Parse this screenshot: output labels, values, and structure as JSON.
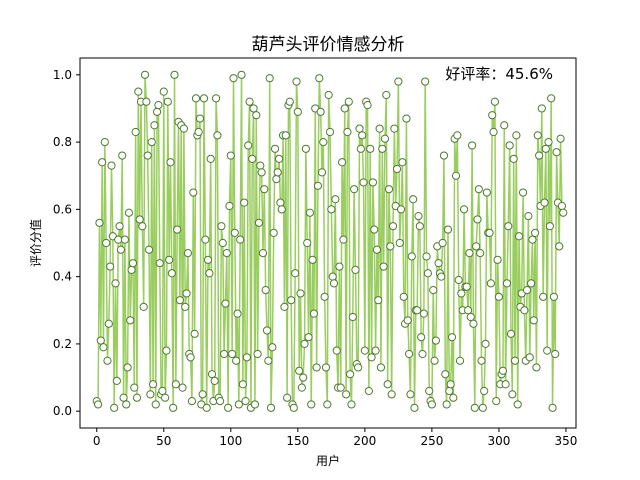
{
  "chart_data": {
    "type": "line",
    "title": "葫芦头评价情感分析",
    "xlabel": "用户",
    "ylabel": "评价分值",
    "annotation": "好评率：45.6%",
    "xlim": [
      -12.5,
      357.5
    ],
    "ylim": [
      -0.05,
      1.05
    ],
    "x_ticks": [
      0,
      50,
      100,
      150,
      200,
      250,
      300,
      350
    ],
    "y_ticks": [
      0.0,
      0.2,
      0.4,
      0.6,
      0.8,
      1.0
    ],
    "grid": false,
    "legend": "none",
    "series": [
      {
        "color": "#9ACD5F",
        "marker_face": "#ffffff",
        "marker_edge": "#4E7A2D",
        "x_start": 0,
        "values": [
          0.03,
          0.02,
          0.56,
          0.21,
          0.74,
          0.19,
          0.8,
          0.5,
          0.15,
          0.26,
          0.43,
          0.73,
          0.52,
          0.01,
          0.38,
          0.09,
          0.51,
          0.55,
          0.48,
          0.76,
          0.04,
          0.51,
          0.02,
          0.13,
          0.59,
          0.27,
          0.42,
          0.44,
          0.07,
          0.83,
          0.04,
          0.95,
          0.57,
          0.92,
          0.55,
          0.31,
          1.0,
          0.92,
          0.76,
          0.48,
          0.05,
          0.8,
          0.08,
          0.85,
          0.02,
          0.89,
          0.91,
          0.44,
          0.05,
          0.06,
          0.95,
          0.04,
          0.18,
          0.92,
          0.45,
          0.74,
          0.41,
          0.01,
          1.0,
          0.08,
          0.54,
          0.86,
          0.33,
          0.85,
          0.07,
          0.84,
          0.31,
          0.35,
          0.47,
          0.17,
          0.16,
          0.03,
          0.65,
          0.23,
          0.93,
          0.82,
          0.83,
          0.87,
          0.02,
          0.05,
          0.93,
          0.51,
          0.01,
          0.45,
          0.41,
          0.75,
          0.11,
          0.03,
          0.09,
          0.93,
          0.82,
          0.04,
          0.03,
          0.55,
          0.5,
          0.17,
          0.32,
          0.47,
          0.01,
          0.61,
          0.76,
          0.17,
          0.99,
          0.53,
          0.15,
          0.29,
          0.02,
          0.51,
          1.0,
          0.08,
          0.62,
          0.03,
          0.16,
          0.79,
          0.92,
          0.01,
          0.75,
          0.9,
          0.02,
          0.88,
          0.17,
          0.56,
          0.73,
          0.71,
          0.47,
          0.66,
          0.36,
          0.24,
          0.15,
          0.99,
          0.01,
          0.19,
          0.53,
          0.78,
          0.69,
          0.71,
          0.75,
          0.62,
          0.6,
          0.82,
          0.31,
          0.82,
          0.04,
          0.91,
          0.92,
          0.33,
          0.02,
          0.01,
          0.41,
          0.98,
          0.89,
          0.12,
          0.35,
          0.07,
          0.1,
          0.2,
          0.78,
          0.5,
          0.22,
          0.59,
          0.02,
          0.45,
          0.29,
          0.9,
          0.13,
          0.67,
          0.99,
          0.89,
          0.71,
          0.8,
          0.34,
          0.13,
          0.02,
          0.94,
          0.83,
          0.6,
          0.4,
          0.38,
          0.63,
          0.18,
          0.07,
          0.43,
          0.07,
          0.74,
          0.51,
          0.9,
          0.05,
          0.83,
          0.92,
          0.11,
          0.02,
          0.28,
          0.66,
          0.42,
          0.14,
          0.13,
          0.84,
          0.78,
          0.82,
          0.68,
          0.18,
          0.92,
          0.91,
          0.06,
          0.78,
          0.16,
          0.68,
          0.54,
          0.18,
          0.48,
          0.33,
          0.84,
          0.13,
          0.78,
          0.43,
          0.81,
          0.94,
          0.08,
          0.66,
          0.49,
          0.05,
          0.55,
          0.84,
          0.61,
          0.72,
          0.98,
          0.5,
          0.6,
          0.74,
          0.34,
          0.26,
          0.87,
          0.27,
          0.17,
          0.05,
          0.46,
          0.63,
          0.01,
          0.3,
          0.3,
          0.58,
          0.55,
          0.22,
          0.17,
          0.29,
          0.98,
          0.46,
          0.41,
          0.06,
          0.03,
          0.02,
          0.36,
          0.15,
          0.21,
          0.49,
          0.44,
          0.41,
          0.4,
          0.5,
          0.76,
          0.11,
          0.02,
          0.54,
          0.06,
          0.08,
          0.22,
          0.04,
          0.81,
          0.7,
          0.82,
          0.39,
          0.15,
          0.35,
          0.3,
          0.6,
          0.37,
          0.37,
          0.3,
          0.47,
          0.28,
          0.79,
          0.26,
          0.01,
          0.49,
          0.57,
          0.66,
          0.47,
          0.15,
          0.01,
          0.06,
          0.2,
          0.65,
          0.53,
          0.53,
          0.38,
          0.88,
          0.83,
          0.92,
          0.03,
          0.45,
          0.34,
          0.08,
          0.11,
          0.12,
          0.85,
          0.08,
          0.38,
          0.55,
          0.79,
          0.23,
          0.05,
          0.75,
          0.15,
          0.82,
          0.02,
          0.52,
          0.31,
          0.35,
          0.65,
          0.3,
          0.15,
          0.36,
          0.58,
          0.16,
          0.38,
          0.51,
          0.27,
          0.53,
          0.13,
          0.82,
          0.76,
          0.61,
          0.9,
          0.34,
          0.62,
          0.78,
          0.18,
          0.8,
          0.55,
          0.93,
          0.01,
          0.34,
          0.17,
          0.77,
          0.62,
          0.49,
          0.81,
          0.61,
          0.59
        ]
      }
    ]
  }
}
